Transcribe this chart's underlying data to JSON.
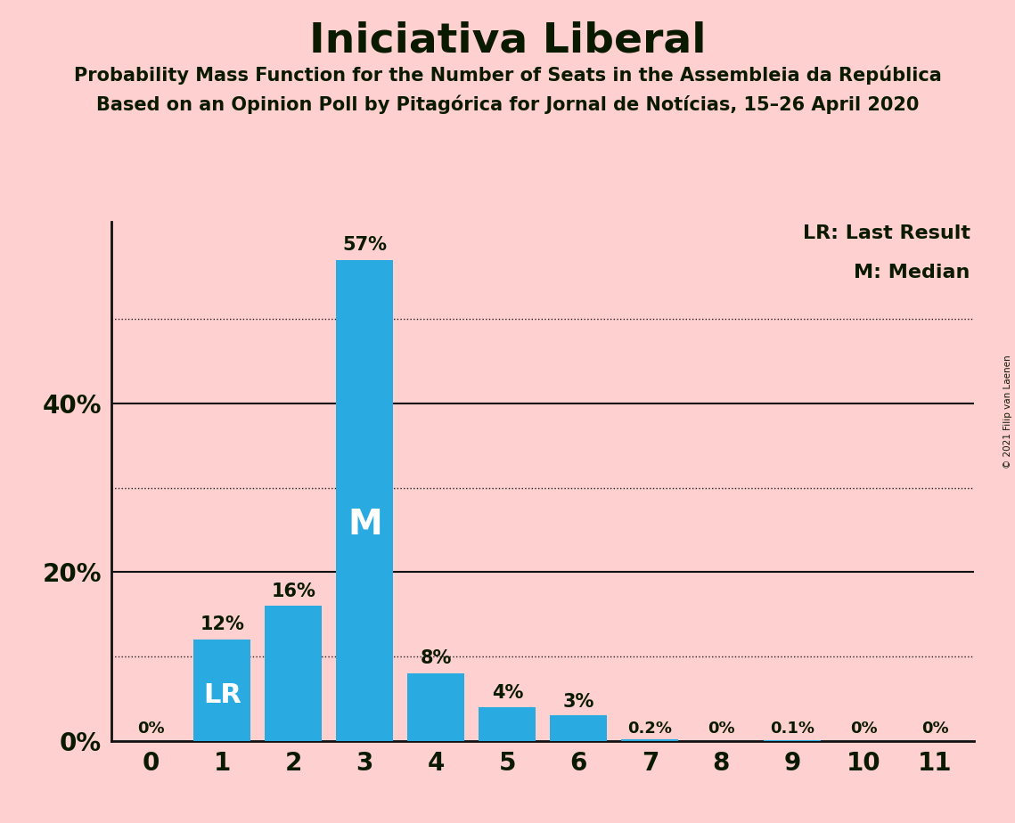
{
  "title": "Iniciativa Liberal",
  "subtitle1": "Probability Mass Function for the Number of Seats in the Assembleia da República",
  "subtitle2": "Based on an Opinion Poll by Pitagórica for Jornal de Notícias, 15–26 April 2020",
  "copyright": "© 2021 Filip van Laenen",
  "categories": [
    0,
    1,
    2,
    3,
    4,
    5,
    6,
    7,
    8,
    9,
    10,
    11
  ],
  "values": [
    0.0,
    0.12,
    0.16,
    0.57,
    0.08,
    0.04,
    0.03,
    0.002,
    0.0,
    0.001,
    0.0,
    0.0
  ],
  "bar_labels": [
    "0%",
    "12%",
    "16%",
    "57%",
    "8%",
    "4%",
    "3%",
    "0.2%",
    "0%",
    "0.1%",
    "0%",
    "0%"
  ],
  "bar_color": "#29ABE2",
  "background_color": "#FFD0D0",
  "text_color": "#0a1a00",
  "ylim": [
    0,
    0.615
  ],
  "yticks_labeled": [
    0.0,
    0.2,
    0.4
  ],
  "ytick_labeled_names": [
    "0%",
    "20%",
    "40%"
  ],
  "yticks_dotted": [
    0.1,
    0.3,
    0.5
  ],
  "yticks_solid": [
    0.2,
    0.4
  ],
  "lr_bar": 1,
  "median_bar": 3,
  "legend_lr": "LR: Last Result",
  "legend_m": "M: Median",
  "bar_width": 0.8
}
